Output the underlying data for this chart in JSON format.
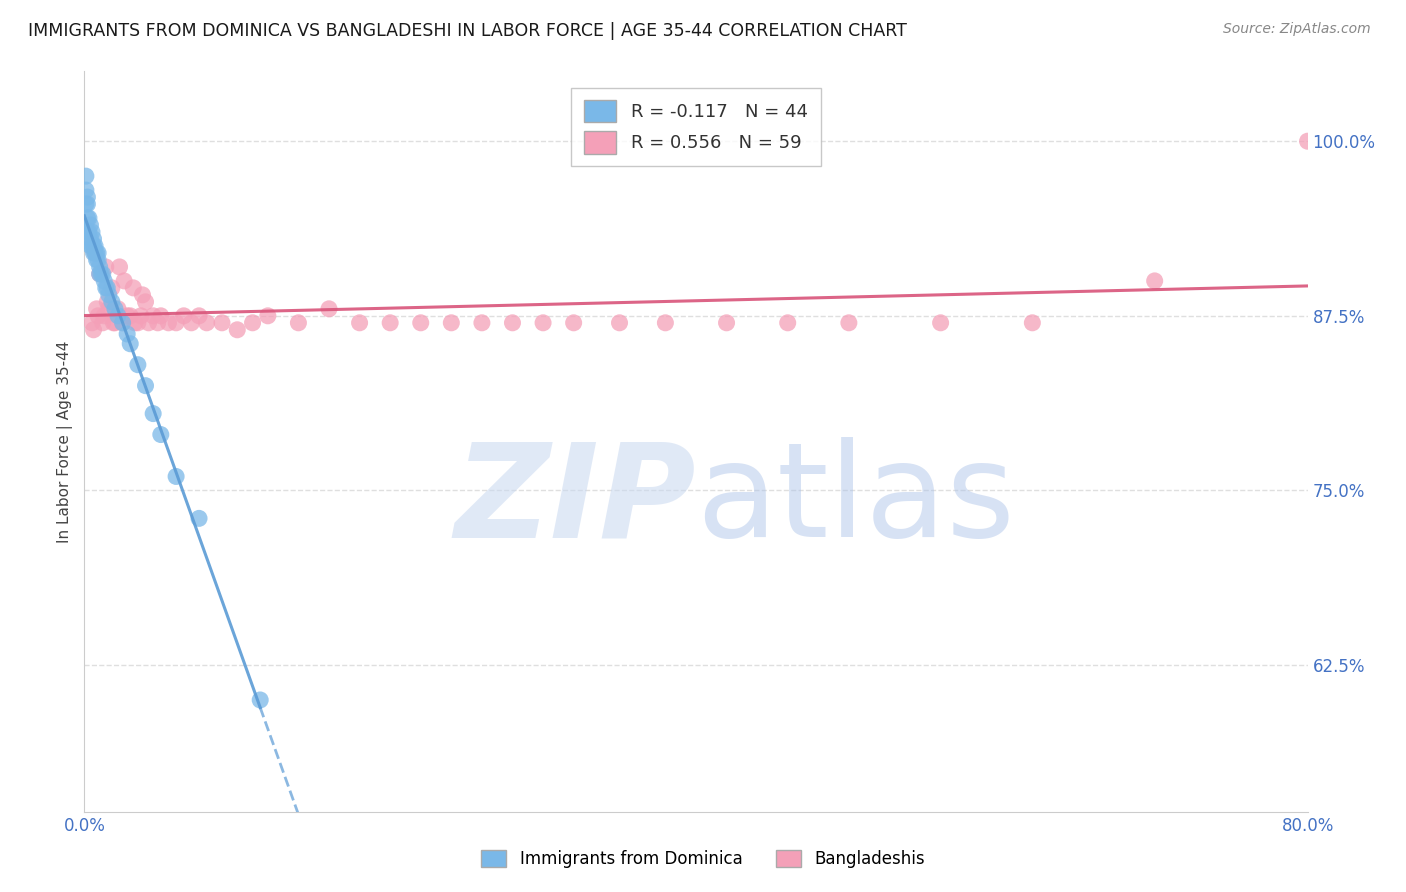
{
  "title": "IMMIGRANTS FROM DOMINICA VS BANGLADESHI IN LABOR FORCE | AGE 35-44 CORRELATION CHART",
  "source": "Source: ZipAtlas.com",
  "ylabel": "In Labor Force | Age 35-44",
  "xlim": [
    0.0,
    0.8
  ],
  "ylim": [
    0.52,
    1.05
  ],
  "yticks": [
    0.625,
    0.75,
    0.875,
    1.0
  ],
  "ytick_labels": [
    "62.5%",
    "75.0%",
    "87.5%",
    "100.0%"
  ],
  "xticks": [
    0.0,
    0.1,
    0.2,
    0.3,
    0.4,
    0.5,
    0.6,
    0.7,
    0.8
  ],
  "xtick_labels": [
    "0.0%",
    "",
    "",
    "",
    "",
    "",
    "",
    "",
    "80.0%"
  ],
  "dominica_R": -0.117,
  "dominica_N": 44,
  "bangladeshi_R": 0.556,
  "bangladeshi_N": 59,
  "dominica_color": "#7ab8e8",
  "bangladeshi_color": "#f4a0b8",
  "dominica_line_color": "#5b9bd5",
  "bangladeshi_line_color": "#d9547a",
  "dominica_x": [
    0.001,
    0.001,
    0.001,
    0.002,
    0.002,
    0.002,
    0.002,
    0.003,
    0.003,
    0.004,
    0.004,
    0.004,
    0.005,
    0.005,
    0.006,
    0.006,
    0.006,
    0.007,
    0.007,
    0.008,
    0.008,
    0.009,
    0.009,
    0.01,
    0.01,
    0.011,
    0.012,
    0.013,
    0.014,
    0.015,
    0.016,
    0.018,
    0.02,
    0.022,
    0.025,
    0.028,
    0.03,
    0.035,
    0.04,
    0.045,
    0.05,
    0.06,
    0.075,
    0.115
  ],
  "dominica_y": [
    0.975,
    0.965,
    0.955,
    0.96,
    0.955,
    0.945,
    0.935,
    0.945,
    0.935,
    0.94,
    0.93,
    0.925,
    0.935,
    0.925,
    0.93,
    0.925,
    0.92,
    0.925,
    0.92,
    0.92,
    0.915,
    0.92,
    0.915,
    0.91,
    0.905,
    0.905,
    0.905,
    0.9,
    0.895,
    0.895,
    0.89,
    0.885,
    0.88,
    0.875,
    0.87,
    0.862,
    0.855,
    0.84,
    0.825,
    0.805,
    0.79,
    0.76,
    0.73,
    0.6
  ],
  "bangladeshi_x": [
    0.005,
    0.006,
    0.007,
    0.008,
    0.009,
    0.01,
    0.012,
    0.013,
    0.014,
    0.015,
    0.016,
    0.018,
    0.019,
    0.02,
    0.022,
    0.023,
    0.025,
    0.026,
    0.028,
    0.03,
    0.032,
    0.033,
    0.035,
    0.037,
    0.038,
    0.04,
    0.042,
    0.045,
    0.048,
    0.05,
    0.055,
    0.06,
    0.065,
    0.07,
    0.075,
    0.08,
    0.09,
    0.1,
    0.11,
    0.12,
    0.14,
    0.16,
    0.18,
    0.2,
    0.22,
    0.24,
    0.26,
    0.28,
    0.3,
    0.32,
    0.35,
    0.38,
    0.42,
    0.46,
    0.5,
    0.56,
    0.62,
    0.7,
    0.8
  ],
  "bangladeshi_y": [
    0.87,
    0.865,
    0.92,
    0.88,
    0.875,
    0.905,
    0.87,
    0.875,
    0.91,
    0.885,
    0.88,
    0.895,
    0.87,
    0.87,
    0.88,
    0.91,
    0.87,
    0.9,
    0.875,
    0.875,
    0.895,
    0.87,
    0.87,
    0.875,
    0.89,
    0.885,
    0.87,
    0.875,
    0.87,
    0.875,
    0.87,
    0.87,
    0.875,
    0.87,
    0.875,
    0.87,
    0.87,
    0.865,
    0.87,
    0.875,
    0.87,
    0.88,
    0.87,
    0.87,
    0.87,
    0.87,
    0.87,
    0.87,
    0.87,
    0.87,
    0.87,
    0.87,
    0.87,
    0.87,
    0.87,
    0.87,
    0.87,
    0.9,
    1.0
  ],
  "background_color": "#ffffff",
  "grid_color": "#d8d8d8",
  "axis_color": "#cccccc",
  "tick_color": "#4472c4",
  "title_fontsize": 12.5,
  "legend_fontsize": 13
}
